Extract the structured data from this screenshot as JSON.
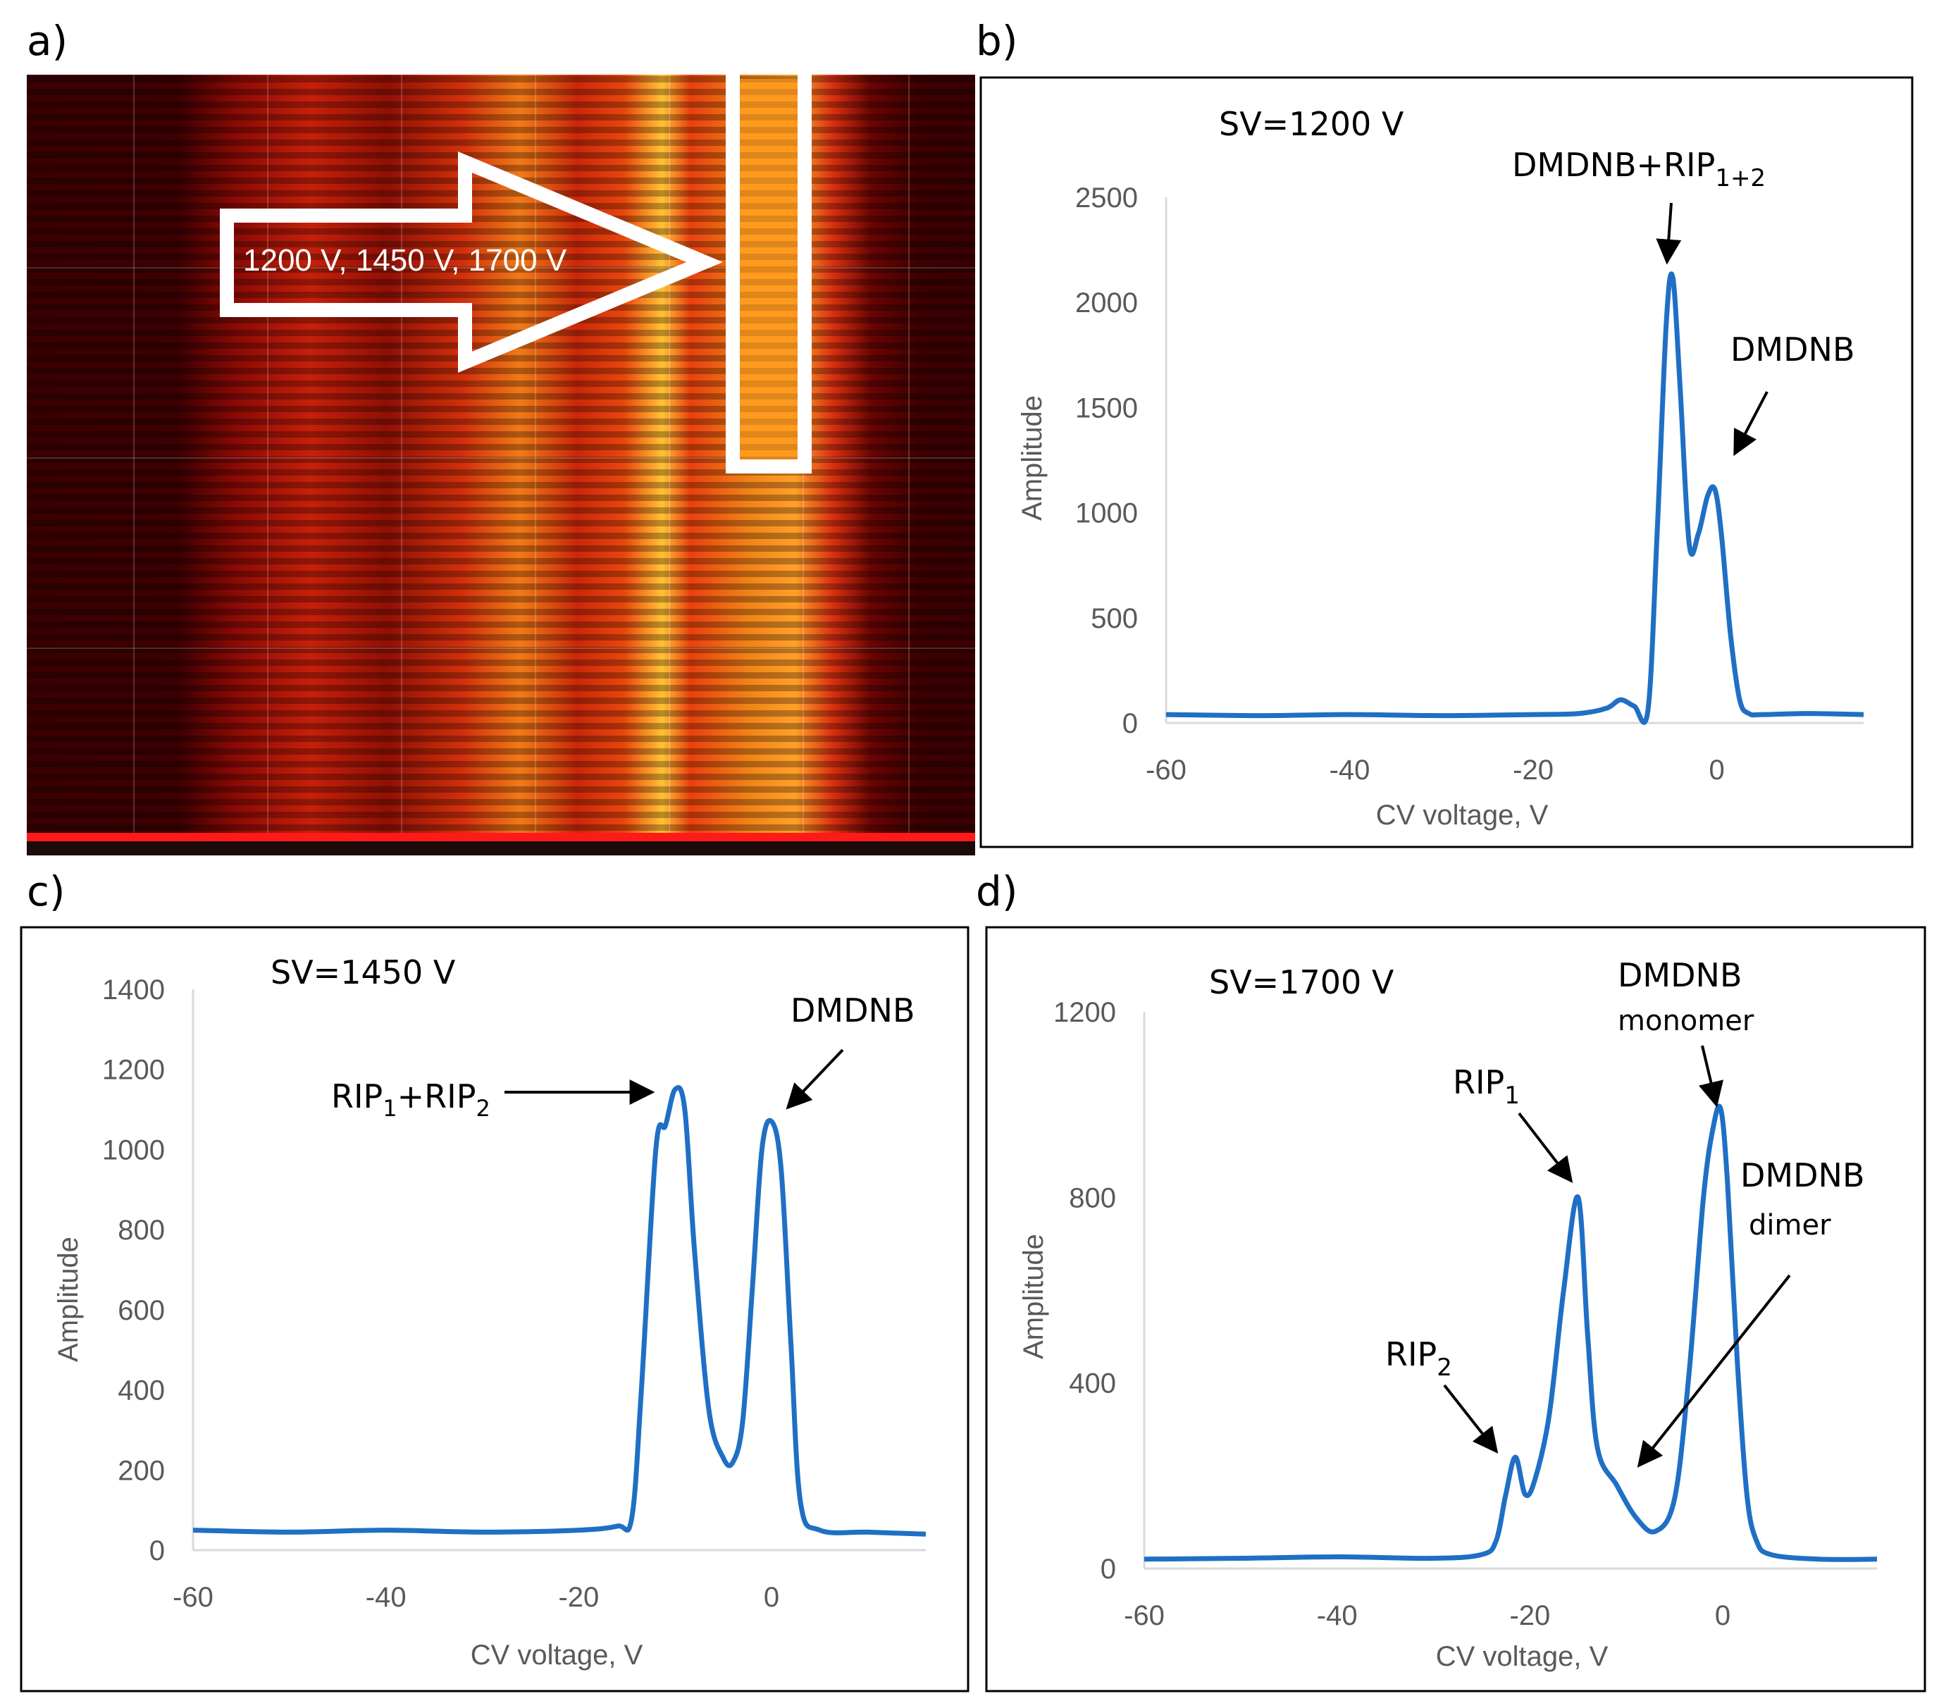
{
  "panel_labels": [
    "a)",
    "b)",
    "c)",
    "d)"
  ],
  "heatmap": {
    "arrow_label": "1200 V, 1450 V, 1700 V",
    "colors": {
      "background": "#3d0000",
      "hot": "#ffd23c",
      "mid": "#e8350e",
      "box": "#ffffff",
      "baseline": "#ff1a1a"
    }
  },
  "chart_data": [
    {
      "id": "b",
      "type": "line",
      "title": "SV=1200  V",
      "xlabel": "CV voltage, V",
      "ylabel": "Amplitude",
      "xlim": [
        -60,
        16
      ],
      "ylim": [
        0,
        2500
      ],
      "xticks": [
        -60,
        -40,
        -20,
        0
      ],
      "yticks": [
        0,
        500,
        1000,
        1500,
        2000,
        2500
      ],
      "color": "#1f6fc5",
      "x": [
        -60,
        -50,
        -40,
        -30,
        -20,
        -15,
        -12,
        -10.5,
        -9,
        -7.5,
        -6.5,
        -5.5,
        -4.8,
        -4,
        -3,
        -2,
        -1,
        -0.2,
        0.5,
        1.5,
        2.5,
        3.5,
        5,
        10,
        16
      ],
      "y": [
        40,
        35,
        40,
        35,
        40,
        45,
        70,
        110,
        80,
        60,
        900,
        1900,
        2120,
        1600,
        850,
        900,
        1080,
        1110,
        900,
        420,
        110,
        45,
        40,
        45,
        40
      ],
      "annotations": [
        {
          "text": "DMDNB+RIP",
          "sub": "1+2",
          "points_to": [
            -5,
            2150
          ]
        },
        {
          "text": "DMDNB",
          "points_to": [
            -0.5,
            1140
          ]
        }
      ]
    },
    {
      "id": "c",
      "type": "line",
      "title": "SV=1450  V",
      "xlabel": "CV voltage, V",
      "ylabel": "Amplitude",
      "xlim": [
        -60,
        16
      ],
      "ylim": [
        0,
        1400
      ],
      "xticks": [
        -60,
        -40,
        -20,
        0
      ],
      "yticks": [
        0,
        200,
        400,
        600,
        800,
        1000,
        1200,
        1400
      ],
      "color": "#1f6fc5",
      "x": [
        -60,
        -50,
        -40,
        -30,
        -20,
        -16,
        -14.5,
        -13.5,
        -12,
        -11,
        -10,
        -9,
        -8,
        -6.5,
        -5,
        -4,
        -3,
        -2,
        -1,
        0,
        1,
        2,
        3,
        5,
        10,
        16
      ],
      "y": [
        50,
        45,
        50,
        45,
        50,
        60,
        80,
        400,
        1000,
        1060,
        1150,
        1100,
        750,
        350,
        230,
        220,
        320,
        650,
        1000,
        1070,
        950,
        520,
        120,
        50,
        45,
        40
      ],
      "annotations": [
        {
          "text": "RIP",
          "sub": "1",
          "text2": "+RIP",
          "sub2": "2",
          "points_to": [
            -11,
            1150
          ]
        },
        {
          "text": "DMDNB",
          "points_to": [
            0,
            1070
          ]
        }
      ]
    },
    {
      "id": "d",
      "type": "line",
      "title": "SV=1700  V",
      "xlabel": "CV voltage, V",
      "ylabel": "Amplitude",
      "xlim": [
        -60,
        16
      ],
      "ylim": [
        0,
        1200
      ],
      "xticks": [
        -60,
        -40,
        -20,
        0
      ],
      "yticks": [
        0,
        400,
        800,
        1200
      ],
      "color": "#1f6fc5",
      "x": [
        -60,
        -50,
        -40,
        -30,
        -25,
        -23.5,
        -22.5,
        -21.5,
        -20.5,
        -19.5,
        -18,
        -16.5,
        -15,
        -14,
        -13,
        -11,
        -9,
        -7,
        -5,
        -3.5,
        -2,
        -1,
        -0.2,
        0.5,
        1.5,
        2.5,
        3.5,
        5,
        10,
        16
      ],
      "y": [
        20,
        22,
        25,
        22,
        30,
        60,
        160,
        240,
        160,
        190,
        330,
        600,
        800,
        500,
        260,
        180,
        110,
        80,
        150,
        420,
        800,
        950,
        990,
        830,
        450,
        160,
        60,
        30,
        20,
        20
      ],
      "annotations": [
        {
          "text": "RIP",
          "sub": "2",
          "points_to": [
            -22,
            240
          ]
        },
        {
          "text": "RIP",
          "sub": "1",
          "points_to": [
            -15.5,
            800
          ]
        },
        {
          "text": "DMDNB",
          "text_line2": "monomer",
          "points_to": [
            -0.5,
            990
          ]
        },
        {
          "text": "DMDNB",
          "text_line2": "dimer",
          "points_to": [
            -9,
            210
          ]
        }
      ]
    }
  ]
}
